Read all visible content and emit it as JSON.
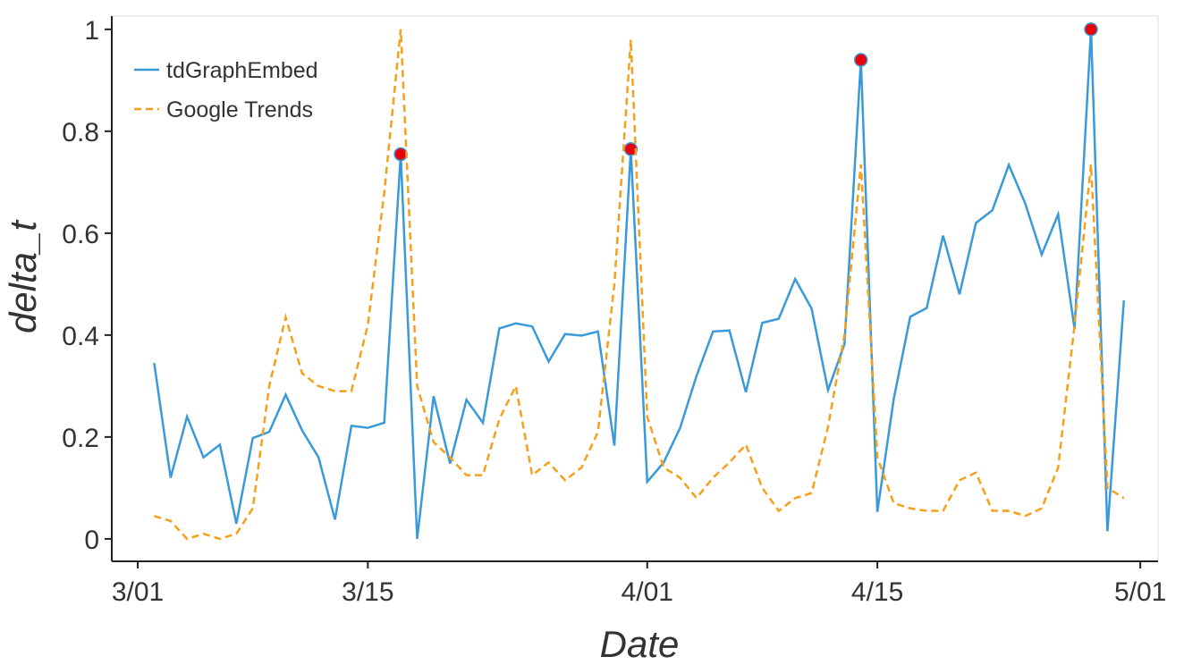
{
  "chart_data": {
    "type": "line",
    "xlabel": "Date",
    "ylabel": "delta_t",
    "x": [
      1,
      2,
      3,
      4,
      5,
      6,
      7,
      8,
      9,
      10,
      11,
      12,
      13,
      14,
      15,
      16,
      17,
      18,
      19,
      20,
      21,
      22,
      23,
      24,
      25,
      26,
      27,
      28,
      29,
      30,
      31,
      32,
      33,
      34,
      35,
      36,
      37,
      38,
      39,
      40,
      41,
      42,
      43,
      44,
      45,
      46,
      47,
      48,
      49,
      50,
      51,
      52,
      53,
      54,
      55,
      56,
      57,
      58,
      59,
      60
    ],
    "series": [
      {
        "name": "tdGraphEmbed",
        "color": "#3a9ad9",
        "dash": false,
        "values": [
          0.345,
          0.12,
          0.24,
          0.16,
          0.185,
          0.03,
          0.198,
          0.21,
          0.283,
          0.213,
          0.16,
          0.038,
          0.222,
          0.218,
          0.228,
          0.755,
          0.0,
          0.28,
          0.148,
          0.273,
          0.228,
          0.413,
          0.423,
          0.417,
          0.348,
          0.402,
          0.399,
          0.407,
          0.183,
          0.765,
          0.112,
          0.15,
          0.218,
          0.32,
          0.407,
          0.409,
          0.288,
          0.424,
          0.432,
          0.51,
          0.452,
          0.292,
          0.382,
          0.94,
          0.053,
          0.275,
          0.436,
          0.453,
          0.595,
          0.48,
          0.62,
          0.645,
          0.734,
          0.658,
          0.558,
          0.637,
          0.412,
          1.0,
          0.015,
          0.468
        ],
        "highlight": [
          15,
          29,
          43,
          57
        ],
        "highlight_color": "#e8000b"
      },
      {
        "name": "Google Trends",
        "color": "#f5a01a",
        "dash": true,
        "values": [
          0.045,
          0.035,
          0.0,
          0.01,
          0.0,
          0.01,
          0.06,
          0.3,
          0.435,
          0.325,
          0.3,
          0.29,
          0.29,
          0.42,
          0.68,
          1.0,
          0.3,
          0.19,
          0.16,
          0.125,
          0.125,
          0.235,
          0.3,
          0.125,
          0.15,
          0.115,
          0.14,
          0.21,
          0.5,
          0.98,
          0.24,
          0.14,
          0.12,
          0.08,
          0.12,
          0.15,
          0.185,
          0.1,
          0.055,
          0.08,
          0.09,
          0.22,
          0.4,
          0.735,
          0.16,
          0.07,
          0.06,
          0.055,
          0.055,
          0.115,
          0.13,
          0.055,
          0.055,
          0.045,
          0.06,
          0.14,
          0.42,
          0.735,
          0.1,
          0.08
        ]
      }
    ],
    "xlim": [
      -1.58,
      62.08
    ],
    "xticks": [
      {
        "value": 0,
        "label": "3/01"
      },
      {
        "value": 14,
        "label": "3/15"
      },
      {
        "value": 31,
        "label": "4/01"
      },
      {
        "value": 45,
        "label": "4/15"
      },
      {
        "value": 61,
        "label": "5/01"
      }
    ],
    "ylim": [
      -0.044,
      1.026
    ],
    "yticks": [
      0,
      0.2,
      0.4,
      0.6,
      0.8,
      1
    ],
    "legend": "upper left"
  }
}
